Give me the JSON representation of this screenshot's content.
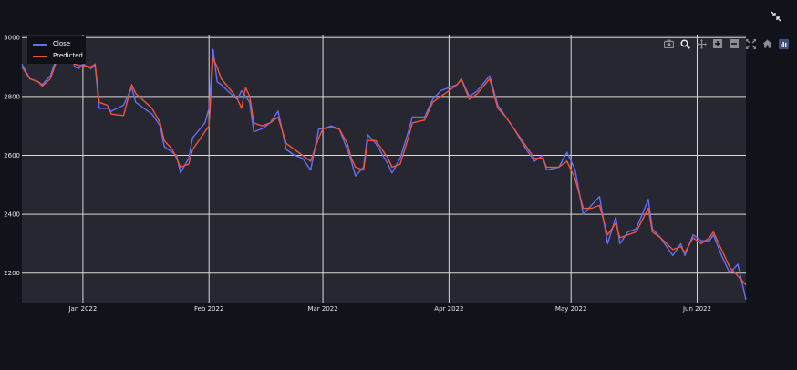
{
  "chart_data": {
    "type": "line",
    "xlim": [
      "2021-12-17",
      "2022-06-13"
    ],
    "ylim": [
      2100,
      3010
    ],
    "x_ticks": [
      {
        "date": "2022-01-01",
        "label": "Jan 2022"
      },
      {
        "date": "2022-02-01",
        "label": "Feb 2022"
      },
      {
        "date": "2022-03-01",
        "label": "Mar 2022"
      },
      {
        "date": "2022-04-01",
        "label": "Apr 2022"
      },
      {
        "date": "2022-05-01",
        "label": "May 2022"
      },
      {
        "date": "2022-06-01",
        "label": "Jun 2022"
      }
    ],
    "y_ticks": [
      2200,
      2400,
      2600,
      2800,
      3000
    ],
    "grid": true,
    "legend_position": "top-left",
    "series": [
      {
        "name": "Close",
        "color": "#636efa",
        "points": [
          [
            "2021-12-17",
            2910
          ],
          [
            "2021-12-19",
            2860
          ],
          [
            "2021-12-21",
            2850
          ],
          [
            "2021-12-22",
            2840
          ],
          [
            "2021-12-24",
            2870
          ],
          [
            "2021-12-25",
            2910
          ],
          [
            "2021-12-27",
            2990
          ],
          [
            "2021-12-28",
            2998
          ],
          [
            "2021-12-30",
            2900
          ],
          [
            "2021-12-31",
            2895
          ],
          [
            "2022-01-01",
            2910
          ],
          [
            "2022-01-03",
            2895
          ],
          [
            "2022-01-04",
            2905
          ],
          [
            "2022-01-05",
            2760
          ],
          [
            "2022-01-07",
            2760
          ],
          [
            "2022-01-08",
            2750
          ],
          [
            "2022-01-11",
            2770
          ],
          [
            "2022-01-13",
            2830
          ],
          [
            "2022-01-14",
            2780
          ],
          [
            "2022-01-18",
            2740
          ],
          [
            "2022-01-20",
            2700
          ],
          [
            "2022-01-21",
            2630
          ],
          [
            "2022-01-23",
            2610
          ],
          [
            "2022-01-24",
            2600
          ],
          [
            "2022-01-25",
            2540
          ],
          [
            "2022-01-27",
            2590
          ],
          [
            "2022-01-28",
            2660
          ],
          [
            "2022-01-31",
            2710
          ],
          [
            "2022-02-01",
            2760
          ],
          [
            "2022-02-02",
            2960
          ],
          [
            "2022-02-03",
            2850
          ],
          [
            "2022-02-04",
            2840
          ],
          [
            "2022-02-07",
            2800
          ],
          [
            "2022-02-08",
            2790
          ],
          [
            "2022-02-09",
            2820
          ],
          [
            "2022-02-10",
            2800
          ],
          [
            "2022-02-11",
            2780
          ],
          [
            "2022-02-12",
            2680
          ],
          [
            "2022-02-14",
            2690
          ],
          [
            "2022-02-16",
            2710
          ],
          [
            "2022-02-18",
            2750
          ],
          [
            "2022-02-20",
            2620
          ],
          [
            "2022-02-22",
            2600
          ],
          [
            "2022-02-24",
            2590
          ],
          [
            "2022-02-26",
            2550
          ],
          [
            "2022-02-28",
            2690
          ],
          [
            "2022-03-01",
            2690
          ],
          [
            "2022-03-03",
            2700
          ],
          [
            "2022-03-05",
            2690
          ],
          [
            "2022-03-07",
            2620
          ],
          [
            "2022-03-08",
            2580
          ],
          [
            "2022-03-09",
            2530
          ],
          [
            "2022-03-11",
            2560
          ],
          [
            "2022-03-12",
            2670
          ],
          [
            "2022-03-14",
            2640
          ],
          [
            "2022-03-17",
            2570
          ],
          [
            "2022-03-18",
            2540
          ],
          [
            "2022-03-20",
            2590
          ],
          [
            "2022-03-22",
            2680
          ],
          [
            "2022-03-23",
            2730
          ],
          [
            "2022-03-26",
            2730
          ],
          [
            "2022-03-28",
            2790
          ],
          [
            "2022-03-30",
            2820
          ],
          [
            "2022-04-01",
            2830
          ],
          [
            "2022-04-03",
            2840
          ],
          [
            "2022-04-04",
            2860
          ],
          [
            "2022-04-06",
            2800
          ],
          [
            "2022-04-08",
            2820
          ],
          [
            "2022-04-11",
            2870
          ],
          [
            "2022-04-13",
            2770
          ],
          [
            "2022-04-15",
            2730
          ],
          [
            "2022-04-17",
            2690
          ],
          [
            "2022-04-20",
            2620
          ],
          [
            "2022-04-22",
            2580
          ],
          [
            "2022-04-24",
            2600
          ],
          [
            "2022-04-25",
            2550
          ],
          [
            "2022-04-28",
            2560
          ],
          [
            "2022-04-30",
            2610
          ],
          [
            "2022-05-02",
            2550
          ],
          [
            "2022-05-04",
            2400
          ],
          [
            "2022-05-06",
            2430
          ],
          [
            "2022-05-08",
            2460
          ],
          [
            "2022-05-10",
            2300
          ],
          [
            "2022-05-12",
            2390
          ],
          [
            "2022-05-13",
            2300
          ],
          [
            "2022-05-15",
            2340
          ],
          [
            "2022-05-17",
            2350
          ],
          [
            "2022-05-20",
            2450
          ],
          [
            "2022-05-21",
            2350
          ],
          [
            "2022-05-23",
            2320
          ],
          [
            "2022-05-26",
            2260
          ],
          [
            "2022-05-28",
            2300
          ],
          [
            "2022-05-29",
            2260
          ],
          [
            "2022-05-31",
            2330
          ],
          [
            "2022-06-02",
            2310
          ],
          [
            "2022-06-04",
            2310
          ],
          [
            "2022-06-05",
            2330
          ],
          [
            "2022-06-07",
            2260
          ],
          [
            "2022-06-09",
            2200
          ],
          [
            "2022-06-11",
            2230
          ],
          [
            "2022-06-13",
            2110
          ]
        ]
      },
      {
        "name": "Predicted",
        "color": "#ef553b",
        "points": [
          [
            "2021-12-17",
            2900
          ],
          [
            "2021-12-19",
            2860
          ],
          [
            "2021-12-21",
            2850
          ],
          [
            "2021-12-22",
            2835
          ],
          [
            "2021-12-24",
            2860
          ],
          [
            "2021-12-25",
            2900
          ],
          [
            "2021-12-27",
            2980
          ],
          [
            "2021-12-28",
            2995
          ],
          [
            "2021-12-30",
            2910
          ],
          [
            "2021-12-31",
            2905
          ],
          [
            "2022-01-01",
            2905
          ],
          [
            "2022-01-03",
            2900
          ],
          [
            "2022-01-04",
            2910
          ],
          [
            "2022-01-05",
            2780
          ],
          [
            "2022-01-07",
            2770
          ],
          [
            "2022-01-08",
            2740
          ],
          [
            "2022-01-11",
            2735
          ],
          [
            "2022-01-13",
            2840
          ],
          [
            "2022-01-14",
            2810
          ],
          [
            "2022-01-18",
            2760
          ],
          [
            "2022-01-20",
            2710
          ],
          [
            "2022-01-21",
            2650
          ],
          [
            "2022-01-23",
            2620
          ],
          [
            "2022-01-24",
            2590
          ],
          [
            "2022-01-25",
            2560
          ],
          [
            "2022-01-27",
            2570
          ],
          [
            "2022-01-28",
            2620
          ],
          [
            "2022-01-31",
            2680
          ],
          [
            "2022-02-01",
            2700
          ],
          [
            "2022-02-02",
            2930
          ],
          [
            "2022-02-03",
            2900
          ],
          [
            "2022-02-04",
            2860
          ],
          [
            "2022-02-07",
            2810
          ],
          [
            "2022-02-08",
            2790
          ],
          [
            "2022-02-09",
            2760
          ],
          [
            "2022-02-10",
            2830
          ],
          [
            "2022-02-11",
            2800
          ],
          [
            "2022-02-12",
            2710
          ],
          [
            "2022-02-14",
            2700
          ],
          [
            "2022-02-16",
            2710
          ],
          [
            "2022-02-18",
            2730
          ],
          [
            "2022-02-20",
            2640
          ],
          [
            "2022-02-22",
            2620
          ],
          [
            "2022-02-24",
            2600
          ],
          [
            "2022-02-26",
            2580
          ],
          [
            "2022-02-28",
            2660
          ],
          [
            "2022-03-01",
            2690
          ],
          [
            "2022-03-03",
            2695
          ],
          [
            "2022-03-05",
            2690
          ],
          [
            "2022-03-07",
            2640
          ],
          [
            "2022-03-08",
            2590
          ],
          [
            "2022-03-09",
            2560
          ],
          [
            "2022-03-11",
            2550
          ],
          [
            "2022-03-12",
            2650
          ],
          [
            "2022-03-14",
            2650
          ],
          [
            "2022-03-17",
            2590
          ],
          [
            "2022-03-18",
            2560
          ],
          [
            "2022-03-20",
            2570
          ],
          [
            "2022-03-22",
            2660
          ],
          [
            "2022-03-23",
            2710
          ],
          [
            "2022-03-26",
            2720
          ],
          [
            "2022-03-28",
            2780
          ],
          [
            "2022-03-30",
            2800
          ],
          [
            "2022-04-01",
            2820
          ],
          [
            "2022-04-03",
            2840
          ],
          [
            "2022-04-04",
            2860
          ],
          [
            "2022-04-06",
            2790
          ],
          [
            "2022-04-08",
            2810
          ],
          [
            "2022-04-11",
            2860
          ],
          [
            "2022-04-13",
            2760
          ],
          [
            "2022-04-15",
            2730
          ],
          [
            "2022-04-17",
            2690
          ],
          [
            "2022-04-20",
            2630
          ],
          [
            "2022-04-22",
            2590
          ],
          [
            "2022-04-24",
            2590
          ],
          [
            "2022-04-25",
            2560
          ],
          [
            "2022-04-28",
            2560
          ],
          [
            "2022-04-30",
            2580
          ],
          [
            "2022-05-02",
            2520
          ],
          [
            "2022-05-04",
            2420
          ],
          [
            "2022-05-06",
            2420
          ],
          [
            "2022-05-08",
            2430
          ],
          [
            "2022-05-10",
            2330
          ],
          [
            "2022-05-12",
            2370
          ],
          [
            "2022-05-13",
            2320
          ],
          [
            "2022-05-15",
            2330
          ],
          [
            "2022-05-17",
            2340
          ],
          [
            "2022-05-20",
            2420
          ],
          [
            "2022-05-21",
            2340
          ],
          [
            "2022-05-23",
            2320
          ],
          [
            "2022-05-26",
            2280
          ],
          [
            "2022-05-28",
            2290
          ],
          [
            "2022-05-29",
            2270
          ],
          [
            "2022-05-31",
            2320
          ],
          [
            "2022-06-02",
            2300
          ],
          [
            "2022-06-04",
            2320
          ],
          [
            "2022-06-05",
            2340
          ],
          [
            "2022-06-07",
            2280
          ],
          [
            "2022-06-09",
            2220
          ],
          [
            "2022-06-11",
            2190
          ],
          [
            "2022-06-13",
            2160
          ]
        ]
      }
    ]
  },
  "modebar": {
    "icons": [
      "camera-icon",
      "zoom-icon",
      "pan-icon",
      "zoom-in-icon",
      "zoom-out-icon",
      "autoscale-icon",
      "reset-axes-icon",
      "plotly-logo-icon"
    ]
  },
  "colors": {
    "page_background": "#0e1117",
    "plot_background": "#262730",
    "grid": "#d9d9d9",
    "close": "#636efa",
    "predicted": "#ef553b"
  }
}
